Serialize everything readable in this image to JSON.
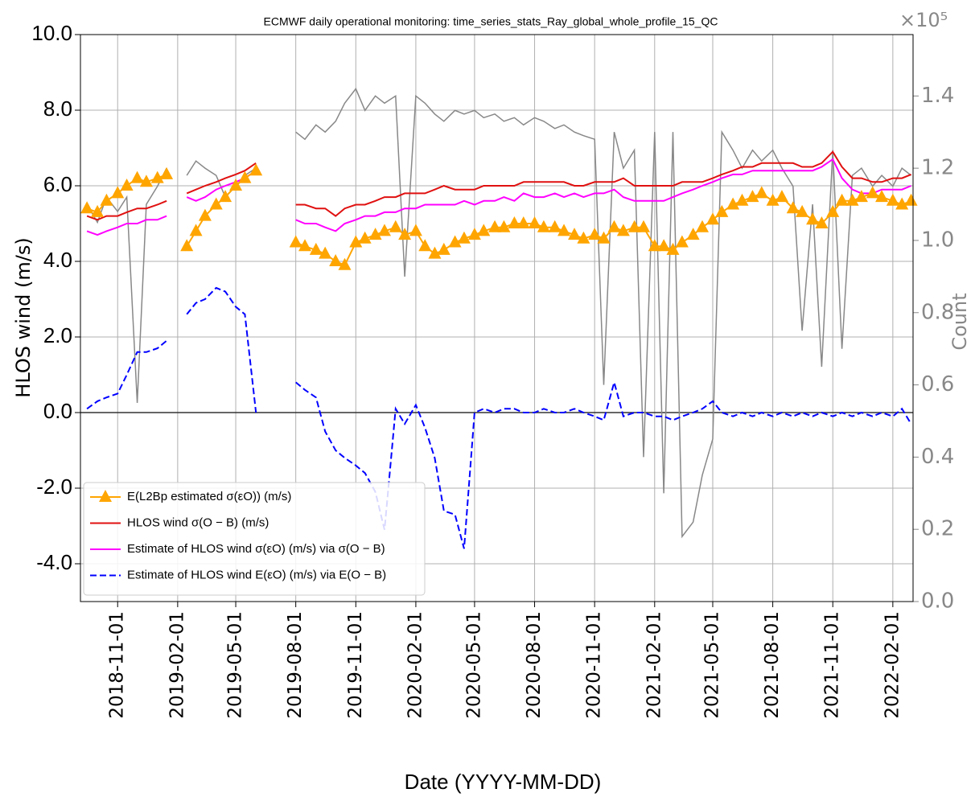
{
  "chart_data": {
    "type": "line",
    "title": "ECMWF daily operational monitoring: time_series_stats_Ray_global_whole_profile_15_QC",
    "x_label": "Date (YYYY-MM-DD)",
    "y_label": "HLOS wind (m/s)",
    "y2_label": "Count",
    "y2_offset_label": "×10⁵",
    "grid": true,
    "legend_position": "lower left",
    "x": [
      "2018-09-15",
      "2018-10-01",
      "2018-10-15",
      "2018-11-01",
      "2018-11-15",
      "2018-12-01",
      "2018-12-15",
      "2019-01-01",
      "2019-01-15",
      "2019-02-01",
      "2019-02-15",
      "2019-03-01",
      "2019-03-15",
      "2019-04-01",
      "2019-04-15",
      "2019-05-01",
      "2019-05-15",
      "2019-06-01",
      "2019-06-15",
      "2019-07-01",
      "2019-07-15",
      "2019-08-01",
      "2019-08-15",
      "2019-09-01",
      "2019-09-15",
      "2019-10-01",
      "2019-10-15",
      "2019-11-01",
      "2019-11-15",
      "2019-12-01",
      "2019-12-15",
      "2020-01-01",
      "2020-01-15",
      "2020-02-01",
      "2020-02-15",
      "2020-03-01",
      "2020-03-15",
      "2020-04-01",
      "2020-04-15",
      "2020-05-01",
      "2020-05-15",
      "2020-06-01",
      "2020-06-15",
      "2020-07-01",
      "2020-07-15",
      "2020-08-01",
      "2020-08-15",
      "2020-09-01",
      "2020-09-15",
      "2020-10-01",
      "2020-10-15",
      "2020-11-01",
      "2020-11-15",
      "2020-12-01",
      "2020-12-15",
      "2021-01-01",
      "2021-01-15",
      "2021-02-01",
      "2021-02-15",
      "2021-03-01",
      "2021-03-15",
      "2021-04-01",
      "2021-04-15",
      "2021-05-01",
      "2021-05-15",
      "2021-06-01",
      "2021-06-15",
      "2021-07-01",
      "2021-07-15",
      "2021-08-01",
      "2021-08-15",
      "2021-09-01",
      "2021-09-15",
      "2021-10-01",
      "2021-10-15",
      "2021-11-01",
      "2021-11-15",
      "2021-12-01",
      "2021-12-15",
      "2022-01-01",
      "2022-01-15",
      "2022-02-01",
      "2022-02-15",
      "2022-03-01"
    ],
    "xlim": [
      "2018-09-05",
      "2022-03-04"
    ],
    "xticks": [
      "2018-11-01",
      "2019-02-01",
      "2019-05-01",
      "2019-08-01",
      "2019-11-01",
      "2020-02-01",
      "2020-05-01",
      "2020-08-01",
      "2020-11-01",
      "2021-02-01",
      "2021-05-01",
      "2021-08-01",
      "2021-11-01",
      "2022-02-01"
    ],
    "ylim": [
      -5,
      10
    ],
    "yticks": [
      {
        "value": -4,
        "label": "-4.0"
      },
      {
        "value": -2,
        "label": "-2.0"
      },
      {
        "value": 0,
        "label": "0.0"
      },
      {
        "value": 2,
        "label": "2.0"
      },
      {
        "value": 4,
        "label": "4.0"
      },
      {
        "value": 6,
        "label": "6.0"
      },
      {
        "value": 8,
        "label": "8.0"
      },
      {
        "value": 10,
        "label": "10.0"
      }
    ],
    "y2lim": [
      0,
      1.57
    ],
    "y2ticks": [
      {
        "value": 0,
        "label": "0.0"
      },
      {
        "value": 0.2,
        "label": "0.2"
      },
      {
        "value": 0.4,
        "label": "0.4"
      },
      {
        "value": 0.6,
        "label": "0.6"
      },
      {
        "value": 0.8,
        "label": "0.8"
      },
      {
        "value": 1,
        "label": "1.0"
      },
      {
        "value": 1.2,
        "label": "1.2"
      },
      {
        "value": 1.4,
        "label": "1.4"
      }
    ],
    "series": [
      {
        "name": "E(L2Bp estimated σ(εO)) (m/s)",
        "color": "#ffa500",
        "marker": "triangle",
        "linestyle": "solid",
        "values": [
          5.4,
          5.3,
          5.6,
          5.8,
          6.0,
          6.2,
          6.1,
          6.2,
          6.3,
          null,
          4.4,
          4.8,
          5.2,
          5.5,
          5.7,
          6.0,
          6.2,
          6.4,
          null,
          null,
          null,
          4.5,
          4.4,
          4.3,
          4.2,
          4.0,
          3.9,
          4.5,
          4.6,
          4.7,
          4.8,
          4.9,
          4.7,
          4.8,
          4.4,
          4.2,
          4.3,
          4.5,
          4.6,
          4.7,
          4.8,
          4.9,
          4.9,
          5.0,
          5.0,
          5.0,
          4.9,
          4.9,
          4.8,
          4.7,
          4.6,
          4.7,
          4.6,
          4.9,
          4.8,
          4.9,
          4.9,
          4.4,
          4.4,
          4.3,
          4.5,
          4.7,
          4.9,
          5.1,
          5.3,
          5.5,
          5.6,
          5.7,
          5.8,
          5.6,
          5.7,
          5.4,
          5.3,
          5.1,
          5.0,
          5.3,
          5.6,
          5.6,
          5.7,
          5.8,
          5.7,
          5.6,
          5.5,
          5.6
        ]
      },
      {
        "name": "HLOS wind σ(O − B) (m/s)",
        "color": "#e01010",
        "linestyle": "solid",
        "values": [
          5.2,
          5.1,
          5.2,
          5.2,
          5.3,
          5.4,
          5.4,
          5.5,
          5.6,
          null,
          5.8,
          5.9,
          6.0,
          6.1,
          6.2,
          6.3,
          6.4,
          6.6,
          null,
          null,
          null,
          5.5,
          5.5,
          5.4,
          5.4,
          5.2,
          5.4,
          5.5,
          5.5,
          5.6,
          5.7,
          5.7,
          5.8,
          5.8,
          5.8,
          5.9,
          6.0,
          5.9,
          5.9,
          5.9,
          6.0,
          6.0,
          6.0,
          6.0,
          6.1,
          6.1,
          6.1,
          6.1,
          6.1,
          6.0,
          6.0,
          6.1,
          6.1,
          6.1,
          6.2,
          6.0,
          6.0,
          6.0,
          6.0,
          6.0,
          6.1,
          6.1,
          6.1,
          6.2,
          6.3,
          6.4,
          6.5,
          6.5,
          6.6,
          6.6,
          6.6,
          6.6,
          6.5,
          6.5,
          6.6,
          6.9,
          6.5,
          6.2,
          6.2,
          6.1,
          6.1,
          6.2,
          6.2,
          6.3
        ]
      },
      {
        "name": "Estimate of HLOS wind σ(εO) (m/s) via σ(O − B)",
        "color": "#ff00ff",
        "linestyle": "solid",
        "values": [
          4.8,
          4.7,
          4.8,
          4.9,
          5.0,
          5.0,
          5.1,
          5.1,
          5.2,
          null,
          5.7,
          5.6,
          5.7,
          5.9,
          6.0,
          6.1,
          6.2,
          6.4,
          null,
          null,
          null,
          5.1,
          5.0,
          5.0,
          4.9,
          4.8,
          5.0,
          5.1,
          5.2,
          5.2,
          5.3,
          5.3,
          5.4,
          5.4,
          5.5,
          5.5,
          5.5,
          5.5,
          5.6,
          5.5,
          5.6,
          5.6,
          5.7,
          5.6,
          5.8,
          5.7,
          5.7,
          5.8,
          5.7,
          5.8,
          5.7,
          5.8,
          5.8,
          5.9,
          5.7,
          5.6,
          5.6,
          5.6,
          5.6,
          5.7,
          5.8,
          5.9,
          6.0,
          6.1,
          6.2,
          6.3,
          6.3,
          6.4,
          6.4,
          6.4,
          6.4,
          6.4,
          6.4,
          6.4,
          6.5,
          6.7,
          6.2,
          5.9,
          5.8,
          5.8,
          5.9,
          5.9,
          5.9,
          6.0
        ]
      },
      {
        "name": "Estimate of HLOS wind E(εO) (m/s) via E(O − B)",
        "color": "#0000ff",
        "linestyle": "dashed",
        "values": [
          0.1,
          0.3,
          0.4,
          0.5,
          1.0,
          1.6,
          1.6,
          1.7,
          1.9,
          null,
          2.6,
          2.9,
          3.0,
          3.3,
          3.2,
          2.8,
          2.6,
          0.0,
          null,
          null,
          null,
          0.8,
          0.6,
          0.4,
          -0.5,
          -1.0,
          -1.2,
          -1.4,
          -1.6,
          -2.1,
          -3.1,
          0.1,
          -0.3,
          0.2,
          -0.4,
          -1.2,
          -2.6,
          -2.7,
          -3.6,
          0.0,
          0.1,
          0.0,
          0.1,
          0.1,
          0.0,
          0.0,
          0.1,
          0.0,
          0.0,
          0.1,
          0.0,
          -0.1,
          -0.2,
          0.8,
          -0.1,
          0.0,
          0.0,
          -0.1,
          -0.1,
          -0.2,
          -0.1,
          0.0,
          0.1,
          0.3,
          0.0,
          -0.1,
          0.0,
          -0.1,
          0.0,
          -0.1,
          0.0,
          -0.1,
          0.0,
          -0.1,
          0.0,
          -0.1,
          0.0,
          -0.1,
          0.0,
          -0.1,
          0.0,
          -0.1,
          0.1,
          -0.3
        ]
      },
      {
        "color": "#888888",
        "axis": "y2",
        "linestyle": "solid",
        "values": [
          1.1,
          1.05,
          1.12,
          1.08,
          1.12,
          0.55,
          1.1,
          1.15,
          1.2,
          null,
          1.18,
          1.22,
          1.2,
          1.18,
          1.12,
          1.15,
          1.18,
          1.2,
          null,
          null,
          null,
          1.3,
          1.28,
          1.32,
          1.3,
          1.33,
          1.38,
          1.42,
          1.36,
          1.4,
          1.38,
          1.4,
          0.9,
          1.4,
          1.38,
          1.35,
          1.33,
          1.36,
          1.35,
          1.36,
          1.34,
          1.35,
          1.33,
          1.34,
          1.32,
          1.34,
          1.33,
          1.31,
          1.32,
          1.3,
          1.29,
          1.28,
          0.6,
          1.3,
          1.2,
          1.25,
          0.4,
          1.3,
          0.3,
          1.3,
          0.18,
          0.22,
          0.35,
          0.45,
          1.3,
          1.25,
          1.2,
          1.25,
          1.22,
          1.25,
          1.2,
          1.15,
          0.75,
          1.1,
          0.65,
          1.25,
          0.7,
          1.18,
          1.2,
          1.15,
          1.18,
          1.15,
          1.2,
          1.18
        ]
      }
    ]
  }
}
